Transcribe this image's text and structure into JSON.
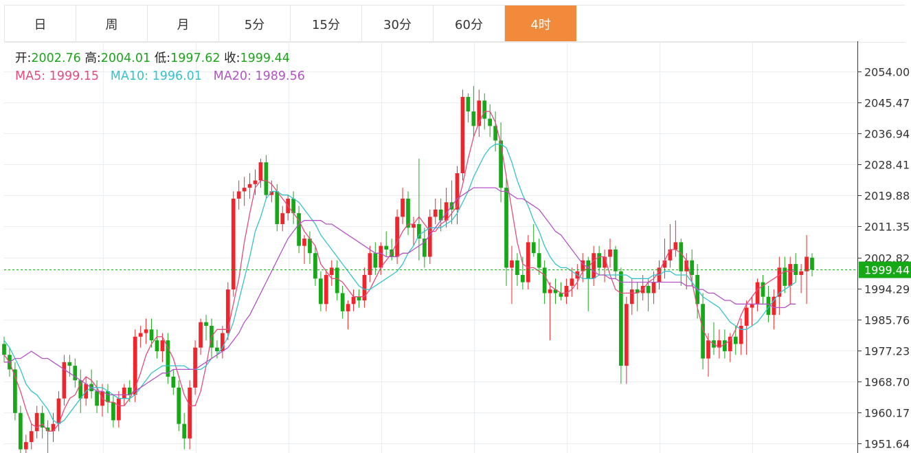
{
  "tabs": [
    {
      "label": "日"
    },
    {
      "label": "周"
    },
    {
      "label": "月"
    },
    {
      "label": "5分"
    },
    {
      "label": "15分"
    },
    {
      "label": "30分"
    },
    {
      "label": "60分"
    },
    {
      "label": "4时",
      "active": true
    }
  ],
  "legend": {
    "open_label": "开:",
    "open": "2002.76",
    "high_label": "高:",
    "high": "2004.01",
    "low_label": "低:",
    "low": "1997.62",
    "close_label": "收:",
    "close": "1999.44",
    "ma5_label": "MA5:",
    "ma5": "1999.15",
    "ma10_label": "MA10:",
    "ma10": "1996.01",
    "ma20_label": "MA20:",
    "ma20": "1989.56"
  },
  "colors": {
    "up": "#f0252b",
    "down": "#17a817",
    "ma5": "#e54b7a",
    "ma10": "#33c2cc",
    "ma20": "#b352c4",
    "last_price_bg": "#17a817",
    "active_tab": "#f28a3c"
  },
  "chart_data": {
    "type": "candlestick",
    "y_axis_side": "right",
    "ylim": [
      1948,
      2060
    ],
    "yticks": [
      "2054.00",
      "2045.47",
      "2036.94",
      "2028.41",
      "2019.88",
      "2011.35",
      "2002.82",
      "1994.29",
      "1985.76",
      "1977.23",
      "1968.70",
      "1960.17",
      "1951.64"
    ],
    "last_price": "1999.44",
    "grid": true,
    "candles": [
      [
        1979,
        1981,
        1974,
        1976
      ],
      [
        1976,
        1978,
        1970,
        1972
      ],
      [
        1972,
        1974,
        1958,
        1960
      ],
      [
        1960,
        1962,
        1948,
        1950
      ],
      [
        1950,
        1954,
        1946,
        1952
      ],
      [
        1952,
        1957,
        1950,
        1955
      ],
      [
        1955,
        1962,
        1953,
        1960
      ],
      [
        1960,
        1962,
        1953,
        1956
      ],
      [
        1956,
        1958,
        1948,
        1955
      ],
      [
        1955,
        1960,
        1952,
        1957
      ],
      [
        1957,
        1966,
        1955,
        1964
      ],
      [
        1964,
        1976,
        1962,
        1974
      ],
      [
        1974,
        1976,
        1970,
        1973
      ],
      [
        1973,
        1975,
        1967,
        1969
      ],
      [
        1969,
        1972,
        1960,
        1964
      ],
      [
        1964,
        1970,
        1962,
        1968
      ],
      [
        1968,
        1972,
        1964,
        1966
      ],
      [
        1966,
        1969,
        1960,
        1962
      ],
      [
        1962,
        1968,
        1959,
        1966
      ],
      [
        1966,
        1968,
        1960,
        1963
      ],
      [
        1963,
        1965,
        1956,
        1958
      ],
      [
        1958,
        1966,
        1956,
        1964
      ],
      [
        1964,
        1968,
        1962,
        1967
      ],
      [
        1967,
        1969,
        1963,
        1965
      ],
      [
        1965,
        1983,
        1963,
        1981
      ],
      [
        1981,
        1984,
        1978,
        1982
      ],
      [
        1982,
        1986,
        1979,
        1983
      ],
      [
        1983,
        1986,
        1978,
        1980
      ],
      [
        1980,
        1983,
        1975,
        1977
      ],
      [
        1977,
        1982,
        1974,
        1980
      ],
      [
        1980,
        1982,
        1968,
        1970
      ],
      [
        1970,
        1972,
        1965,
        1967
      ],
      [
        1967,
        1969,
        1955,
        1957
      ],
      [
        1957,
        1960,
        1950,
        1953
      ],
      [
        1953,
        1969,
        1950,
        1967
      ],
      [
        1967,
        1980,
        1965,
        1978
      ],
      [
        1978,
        1986,
        1976,
        1985
      ],
      [
        1985,
        1987,
        1980,
        1984
      ],
      [
        1984,
        1986,
        1975,
        1978
      ],
      [
        1978,
        1980,
        1975,
        1977
      ],
      [
        1977,
        1984,
        1975,
        1982
      ],
      [
        1982,
        1996,
        1980,
        1994
      ],
      [
        1994,
        2021,
        1992,
        2019
      ],
      [
        2019,
        2024,
        2016,
        2021
      ],
      [
        2021,
        2025,
        2017,
        2022
      ],
      [
        2022,
        2026,
        2019,
        2023
      ],
      [
        2023,
        2027,
        2020,
        2024
      ],
      [
        2024,
        2030,
        2022,
        2029
      ],
      [
        2029,
        2031,
        2019,
        2020
      ],
      [
        2020,
        2024,
        2018,
        2021
      ],
      [
        2021,
        2023,
        2010,
        2012
      ],
      [
        2012,
        2017,
        2010,
        2015
      ],
      [
        2015,
        2020,
        2013,
        2019
      ],
      [
        2019,
        2021,
        2012,
        2015
      ],
      [
        2015,
        2017,
        2004,
        2006
      ],
      [
        2006,
        2009,
        2001,
        2008
      ],
      [
        2008,
        2010,
        2001,
        2004
      ],
      [
        2004,
        2006,
        1995,
        1997
      ],
      [
        1997,
        1999,
        1988,
        1990
      ],
      [
        1990,
        1999,
        1988,
        1998
      ],
      [
        1998,
        2002,
        1995,
        2000
      ],
      [
        2000,
        2002,
        1991,
        1993
      ],
      [
        1993,
        1995,
        1986,
        1988
      ],
      [
        1988,
        1991,
        1983,
        1990
      ],
      [
        1990,
        1994,
        1988,
        1992
      ],
      [
        1992,
        1994,
        1989,
        1991
      ],
      [
        1991,
        2000,
        1989,
        1998
      ],
      [
        1998,
        2006,
        1996,
        2004
      ],
      [
        2004,
        2007,
        1998,
        2000
      ],
      [
        2000,
        2007,
        1998,
        2006
      ],
      [
        2006,
        2010,
        2003,
        2005
      ],
      [
        2005,
        2008,
        2002,
        2003
      ],
      [
        2003,
        2016,
        2001,
        2014
      ],
      [
        2014,
        2022,
        2012,
        2019
      ],
      [
        2019,
        2021,
        2009,
        2011
      ],
      [
        2011,
        2014,
        2006,
        2012
      ],
      [
        2012,
        2030,
        2002,
        2008
      ],
      [
        2008,
        2011,
        2000,
        2003
      ],
      [
        2003,
        2016,
        2001,
        2014
      ],
      [
        2014,
        2019,
        2012,
        2016
      ],
      [
        2016,
        2019,
        2010,
        2013
      ],
      [
        2013,
        2022,
        2011,
        2018
      ],
      [
        2018,
        2024,
        2012,
        2016
      ],
      [
        2016,
        2028,
        2012,
        2026
      ],
      [
        2026,
        2049,
        2024,
        2047
      ],
      [
        2047,
        2048,
        2040,
        2043
      ],
      [
        2043,
        2050,
        2036,
        2039
      ],
      [
        2039,
        2049,
        2036,
        2046
      ],
      [
        2046,
        2048,
        2038,
        2041
      ],
      [
        2041,
        2045,
        2036,
        2039
      ],
      [
        2039,
        2043,
        2032,
        2035
      ],
      [
        2035,
        2040,
        2018,
        2022
      ],
      [
        2022,
        2025,
        1995,
        2000
      ],
      [
        2000,
        2006,
        1990,
        2002
      ],
      [
        2002,
        2004,
        1995,
        1998
      ],
      [
        1998,
        2003,
        1994,
        1996
      ],
      [
        1996,
        2009,
        1994,
        2007
      ],
      [
        2007,
        2012,
        2003,
        2004
      ],
      [
        2004,
        2008,
        1998,
        2000
      ],
      [
        2000,
        2002,
        1990,
        1993
      ],
      [
        1993,
        1996,
        1980,
        1994
      ],
      [
        1994,
        1997,
        1990,
        1993
      ],
      [
        1993,
        1996,
        1991,
        1992
      ],
      [
        1992,
        1997,
        1990,
        1995
      ],
      [
        1995,
        2000,
        1992,
        1997
      ],
      [
        1997,
        2001,
        1994,
        1999
      ],
      [
        1999,
        2004,
        1996,
        2002
      ],
      [
        2002,
        2003,
        1988,
        1997
      ],
      [
        1997,
        2006,
        1995,
        2004
      ],
      [
        2004,
        2006,
        1998,
        2000
      ],
      [
        2000,
        2005,
        1996,
        2003
      ],
      [
        2003,
        2008,
        2000,
        2005
      ],
      [
        2005,
        2006,
        1997,
        1999
      ],
      [
        1999,
        2000,
        1968,
        1973
      ],
      [
        1973,
        1992,
        1968,
        1990
      ],
      [
        1990,
        1997,
        1987,
        1994
      ],
      [
        1994,
        1996,
        1988,
        1993
      ],
      [
        1993,
        1998,
        1991,
        1995
      ],
      [
        1995,
        1997,
        1988,
        1993
      ],
      [
        1993,
        1999,
        1990,
        1996
      ],
      [
        1996,
        2002,
        1994,
        2000
      ],
      [
        2000,
        2008,
        1997,
        2002
      ],
      [
        2002,
        2012,
        2000,
        2005
      ],
      [
        2005,
        2013,
        2003,
        2007
      ],
      [
        2007,
        2008,
        1995,
        1999
      ],
      [
        1999,
        2004,
        1994,
        2002
      ],
      [
        2002,
        2005,
        1995,
        1998
      ],
      [
        1998,
        2001,
        1986,
        1990
      ],
      [
        1990,
        1993,
        1972,
        1975
      ],
      [
        1975,
        1982,
        1970,
        1980
      ],
      [
        1980,
        1985,
        1976,
        1978
      ],
      [
        1978,
        1983,
        1975,
        1980
      ],
      [
        1980,
        1983,
        1975,
        1977
      ],
      [
        1977,
        1982,
        1974,
        1981
      ],
      [
        1981,
        1984,
        1976,
        1979
      ],
      [
        1979,
        1986,
        1976,
        1984
      ],
      [
        1984,
        1991,
        1976,
        1989
      ],
      [
        1989,
        1992,
        1984,
        1990
      ],
      [
        1990,
        1997,
        1988,
        1996
      ],
      [
        1996,
        1998,
        1990,
        1992
      ],
      [
        1992,
        1995,
        1985,
        1987
      ],
      [
        1987,
        1994,
        1983,
        1992
      ],
      [
        1992,
        2003,
        1987,
        2000
      ],
      [
        2000,
        2003,
        1993,
        1995
      ],
      [
        1995,
        2003,
        1990,
        2001
      ],
      [
        2001,
        2004,
        1996,
        1998
      ],
      [
        1998,
        2001,
        1993,
        1999
      ],
      [
        1999,
        2009,
        1990,
        2003
      ],
      [
        2002.76,
        2004.01,
        1997.62,
        1999.44
      ]
    ],
    "ma_series": [
      {
        "name": "MA5",
        "values": [
          1976,
          1974,
          1970,
          1966,
          1961,
          1957,
          1956,
          1957,
          1955,
          1955,
          1957,
          1961,
          1964,
          1965,
          1968,
          1970,
          1969,
          1967,
          1964,
          1963,
          1963,
          1962,
          1962,
          1964,
          1967,
          1971,
          1976,
          1979,
          1981,
          1981,
          1978,
          1975,
          1970,
          1965,
          1962,
          1962,
          1966,
          1973,
          1981,
          1983,
          1983,
          1983,
          1990,
          1997,
          2007,
          2015,
          2022,
          2024,
          2024,
          2023,
          2021,
          2019,
          2017,
          2015,
          2013,
          2010,
          2008,
          2006,
          2001,
          1999,
          1997,
          1997,
          1996,
          1994,
          1992,
          1992,
          1992,
          1994,
          1997,
          2000,
          2002,
          2004,
          2007,
          2010,
          2012,
          2012,
          2014,
          2012,
          2010,
          2010,
          2012,
          2013,
          2015,
          2017,
          2023,
          2030,
          2036,
          2040,
          2043,
          2043,
          2040,
          2034,
          2025,
          2016,
          2007,
          2001,
          2000,
          2000,
          1999,
          1998,
          1995,
          1994,
          1993,
          1993,
          1994,
          1996,
          1999,
          2000,
          2002,
          2003,
          2003,
          1998,
          1994,
          1993,
          1993,
          1993,
          1993,
          1994,
          1996,
          1997,
          1999,
          2002,
          2005,
          2005,
          2004,
          2002,
          1996,
          1989,
          1983,
          1980,
          1979,
          1978,
          1979,
          1980,
          1983,
          1987,
          1990,
          1992,
          1994,
          1995,
          1996,
          1997,
          1998,
          1999,
          1999,
          1999
        ]
      },
      {
        "name": "MA10",
        "values": [
          1980,
          1978,
          1975,
          1972,
          1968,
          1966,
          1965,
          1963,
          1961,
          1958,
          1957,
          1958,
          1960,
          1962,
          1964,
          1966,
          1967,
          1967,
          1967,
          1966,
          1965,
          1964,
          1964,
          1964,
          1965,
          1967,
          1969,
          1971,
          1972,
          1973,
          1973,
          1973,
          1973,
          1973,
          1972,
          1972,
          1972,
          1973,
          1975,
          1976,
          1978,
          1981,
          1985,
          1991,
          1997,
          2003,
          2010,
          2014,
          2019,
          2021,
          2021,
          2020,
          2020,
          2019,
          2018,
          2016,
          2014,
          2012,
          2009,
          2007,
          2005,
          2003,
          2001,
          1999,
          1997,
          1995,
          1994,
          1994,
          1995,
          1996,
          1997,
          1998,
          1999,
          2001,
          2004,
          2006,
          2009,
          2010,
          2011,
          2011,
          2011,
          2012,
          2013,
          2015,
          2018,
          2021,
          2025,
          2028,
          2031,
          2033,
          2034,
          2034,
          2033,
          2029,
          2024,
          2020,
          2017,
          2013,
          2010,
          2006,
          2003,
          2001,
          2000,
          2000,
          1999,
          1998,
          1997,
          1997,
          1997,
          1998,
          1998,
          1998,
          1998,
          1998,
          1998,
          1997,
          1997,
          1997,
          1997,
          1998,
          1998,
          1999,
          1999,
          1998,
          1998,
          1998,
          1996,
          1994,
          1992,
          1991,
          1990,
          1989,
          1987,
          1985,
          1984,
          1983,
          1983,
          1984,
          1985,
          1987,
          1989,
          1991,
          1993,
          1994,
          1995,
          1996
        ]
      },
      {
        "name": "MA20",
        "values": [
          1974,
          1974,
          1975,
          1975,
          1976,
          1977,
          1976,
          1975,
          1975,
          1974,
          1973,
          1972,
          1971,
          1970,
          1969,
          1968,
          1967,
          1966,
          1966,
          1965,
          1965,
          1965,
          1965,
          1965,
          1966,
          1967,
          1968,
          1969,
          1970,
          1971,
          1971,
          1972,
          1972,
          1972,
          1972,
          1972,
          1973,
          1974,
          1975,
          1976,
          1977,
          1978,
          1980,
          1982,
          1985,
          1987,
          1990,
          1993,
          1996,
          1999,
          2002,
          2005,
          2008,
          2010,
          2012,
          2013,
          2013,
          2013,
          2013,
          2012,
          2012,
          2011,
          2010,
          2009,
          2008,
          2007,
          2006,
          2005,
          2004,
          2004,
          2003,
          2003,
          2003,
          2004,
          2004,
          2005,
          2006,
          2007,
          2009,
          2011,
          2013,
          2015,
          2017,
          2019,
          2020,
          2021,
          2022,
          2022,
          2022,
          2022,
          2022,
          2021,
          2021,
          2020,
          2019,
          2019,
          2018,
          2017,
          2016,
          2014,
          2012,
          2010,
          2009,
          2007,
          2005,
          2003,
          2001,
          2000,
          1999,
          1998,
          1998,
          1997,
          1997,
          1996,
          1996,
          1996,
          1996,
          1996,
          1996,
          1996,
          1996,
          1996,
          1996,
          1996,
          1996,
          1995,
          1995,
          1994,
          1994,
          1993,
          1993,
          1992,
          1991,
          1991,
          1990,
          1990,
          1990,
          1990,
          1990,
          1990,
          1990,
          1989,
          1989,
          1989,
          1990,
          1990
        ]
      }
    ]
  }
}
